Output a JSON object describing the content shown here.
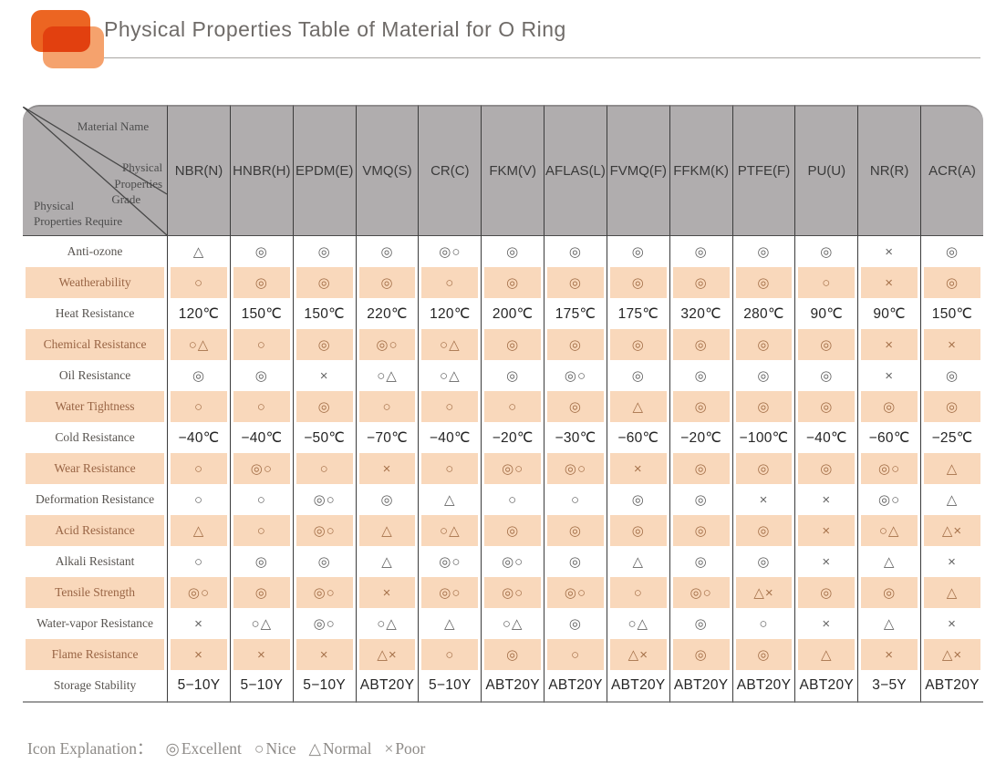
{
  "header": {
    "title": "Physical Properties Table of Material for O Ring"
  },
  "colors": {
    "accent_orange_dark": "#ec6522",
    "accent_orange_light": "#f5a26d",
    "row_stripe_peach": "#f9d8bb",
    "header_gray": "#b0adae"
  },
  "table": {
    "corner": {
      "material_name": "Material Name",
      "grade_lines": [
        "Physical",
        "Properties",
        "Grade"
      ],
      "require_lines": [
        "Physical",
        "Properties Require"
      ]
    },
    "materials": [
      "NBR(N)",
      "HNBR(H)",
      "EPDM(E)",
      "VMQ(S)",
      "CR(C)",
      "FKM(V)",
      "AFLAS(L)",
      "FVMQ(F)",
      "FFKM(K)",
      "PTFE(F)",
      "PU(U)",
      "NR(R)",
      "ACR(A)"
    ],
    "rows": [
      {
        "label": "Anti-ozone",
        "values": [
          "△",
          "◎",
          "◎",
          "◎",
          "◎○",
          "◎",
          "◎",
          "◎",
          "◎",
          "◎",
          "◎",
          "×",
          "◎"
        ]
      },
      {
        "label": "Weatherability",
        "values": [
          "○",
          "◎",
          "◎",
          "◎",
          "○",
          "◎",
          "◎",
          "◎",
          "◎",
          "◎",
          "○",
          "×",
          "◎"
        ]
      },
      {
        "label": "Heat Resistance",
        "values": [
          "120℃",
          "150℃",
          "150℃",
          "220℃",
          "120℃",
          "200℃",
          "175℃",
          "175℃",
          "320℃",
          "280℃",
          "90℃",
          "90℃",
          "150℃"
        ]
      },
      {
        "label": "Chemical Resistance",
        "values": [
          "○△",
          "○",
          "◎",
          "◎○",
          "○△",
          "◎",
          "◎",
          "◎",
          "◎",
          "◎",
          "◎",
          "×",
          "×"
        ]
      },
      {
        "label": "Oil Resistance",
        "values": [
          "◎",
          "◎",
          "×",
          "○△",
          "○△",
          "◎",
          "◎○",
          "◎",
          "◎",
          "◎",
          "◎",
          "×",
          "◎"
        ]
      },
      {
        "label": "Water Tightness",
        "values": [
          "○",
          "○",
          "◎",
          "○",
          "○",
          "○",
          "◎",
          "△",
          "◎",
          "◎",
          "◎",
          "◎",
          "◎"
        ]
      },
      {
        "label": "Cold Resistance",
        "values": [
          "−40℃",
          "−40℃",
          "−50℃",
          "−70℃",
          "−40℃",
          "−20℃",
          "−30℃",
          "−60℃",
          "−20℃",
          "−100℃",
          "−40℃",
          "−60℃",
          "−25℃"
        ]
      },
      {
        "label": "Wear Resistance",
        "values": [
          "○",
          "◎○",
          "○",
          "×",
          "○",
          "◎○",
          "◎○",
          "×",
          "◎",
          "◎",
          "◎",
          "◎○",
          "△"
        ]
      },
      {
        "label": "Deformation Resistance",
        "values": [
          "○",
          "○",
          "◎○",
          "◎",
          "△",
          "○",
          "○",
          "◎",
          "◎",
          "×",
          "×",
          "◎○",
          "△"
        ]
      },
      {
        "label": "Acid Resistance",
        "values": [
          "△",
          "○",
          "◎○",
          "△",
          "○△",
          "◎",
          "◎",
          "◎",
          "◎",
          "◎",
          "×",
          "○△",
          "△×"
        ]
      },
      {
        "label": "Alkali Resistant",
        "values": [
          "○",
          "◎",
          "◎",
          "△",
          "◎○",
          "◎○",
          "◎",
          "△",
          "◎",
          "◎",
          "×",
          "△",
          "×"
        ]
      },
      {
        "label": "Tensile Strength",
        "values": [
          "◎○",
          "◎",
          "◎○",
          "×",
          "◎○",
          "◎○",
          "◎○",
          "○",
          "◎○",
          "△×",
          "◎",
          "◎",
          "△"
        ]
      },
      {
        "label": "Water-vapor Resistance",
        "values": [
          "×",
          "○△",
          "◎○",
          "○△",
          "△",
          "○△",
          "◎",
          "○△",
          "◎",
          "○",
          "×",
          "△",
          "×"
        ]
      },
      {
        "label": "Flame Resistance",
        "values": [
          "×",
          "×",
          "×",
          "△×",
          "○",
          "◎",
          "○",
          "△×",
          "◎",
          "◎",
          "△",
          "×",
          "△×"
        ]
      },
      {
        "label": "Storage Stability",
        "values": [
          "5−10Y",
          "5−10Y",
          "5−10Y",
          "ABT20Y",
          "5−10Y",
          "ABT20Y",
          "ABT20Y",
          "ABT20Y",
          "ABT20Y",
          "ABT20Y",
          "ABT20Y",
          "3−5Y",
          "ABT20Y"
        ]
      }
    ]
  },
  "legend": {
    "prefix": "Icon Explanation：",
    "items": [
      {
        "symbol": "◎",
        "label": "Excellent"
      },
      {
        "symbol": "○",
        "label": "Nice"
      },
      {
        "symbol": "△",
        "label": "Normal"
      },
      {
        "symbol": "×",
        "label": "Poor"
      }
    ]
  }
}
